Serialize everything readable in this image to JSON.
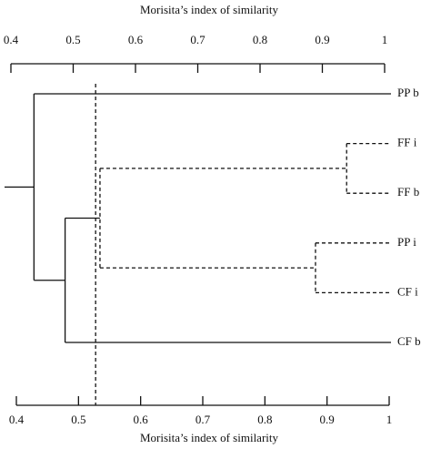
{
  "chart_data": {
    "type": "dendrogram",
    "color": "#000000",
    "x_axis_top": {
      "title": "Morisita’s index of similarity",
      "xlim": [
        0.4,
        1
      ],
      "xticks": [
        0.4,
        0.5,
        0.6,
        0.7,
        0.8,
        0.9,
        1
      ]
    },
    "x_axis_bottom": {
      "title": "Morisita’s index of similarity",
      "xlim": [
        0.4,
        1
      ],
      "xticks": [
        0.4,
        0.5,
        0.6,
        0.7,
        0.8,
        0.9,
        1
      ]
    },
    "threshold": 0.536,
    "tree": {
      "value": 0.437,
      "children": [
        {
          "label": "PP b"
        },
        {
          "value": 0.487,
          "children": [
            {
              "value": 0.543,
              "style": "dashed",
              "children": [
                {
                  "value": 0.939,
                  "style": "dashed",
                  "children": [
                    {
                      "label": "FF i"
                    },
                    {
                      "label": "FF b"
                    }
                  ]
                },
                {
                  "value": 0.889,
                  "style": "dashed",
                  "children": [
                    {
                      "label": "PP i"
                    },
                    {
                      "label": "CF i"
                    }
                  ]
                }
              ]
            },
            {
              "label": "CF b"
            }
          ]
        }
      ]
    }
  }
}
